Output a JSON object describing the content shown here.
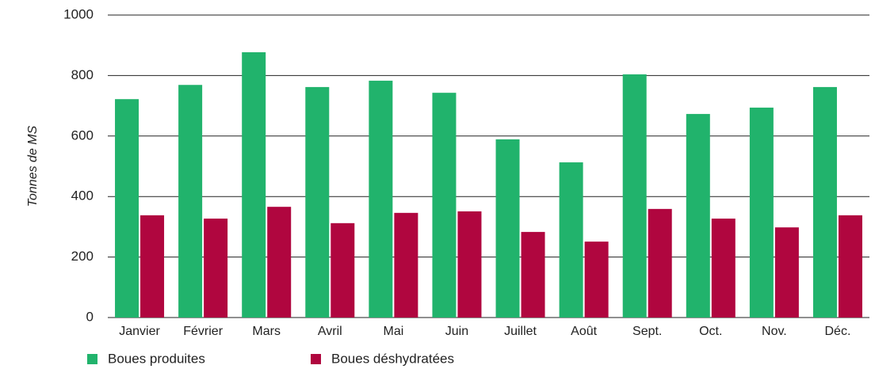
{
  "chart_data": {
    "type": "bar",
    "y_label": "Tonnes de MS",
    "categories": [
      "Janvier",
      "Février",
      "Mars",
      "Avril",
      "Mai",
      "Juin",
      "Juillet",
      "Août",
      "Sept.",
      "Oct.",
      "Nov.",
      "Déc."
    ],
    "series": [
      {
        "name": "Boues produites",
        "color": "#21b36c",
        "values": [
          722,
          769,
          877,
          762,
          783,
          743,
          589,
          513,
          804,
          673,
          694,
          762
        ]
      },
      {
        "name": "Boues déshydratées",
        "color": "#b0063f",
        "values": [
          338,
          327,
          366,
          312,
          346,
          351,
          283,
          251,
          359,
          327,
          298,
          338
        ]
      }
    ],
    "ylim": [
      0,
      1000
    ],
    "yticks": [
      0,
      200,
      400,
      600,
      800,
      1000
    ],
    "grid": true,
    "legend": "bottom"
  }
}
